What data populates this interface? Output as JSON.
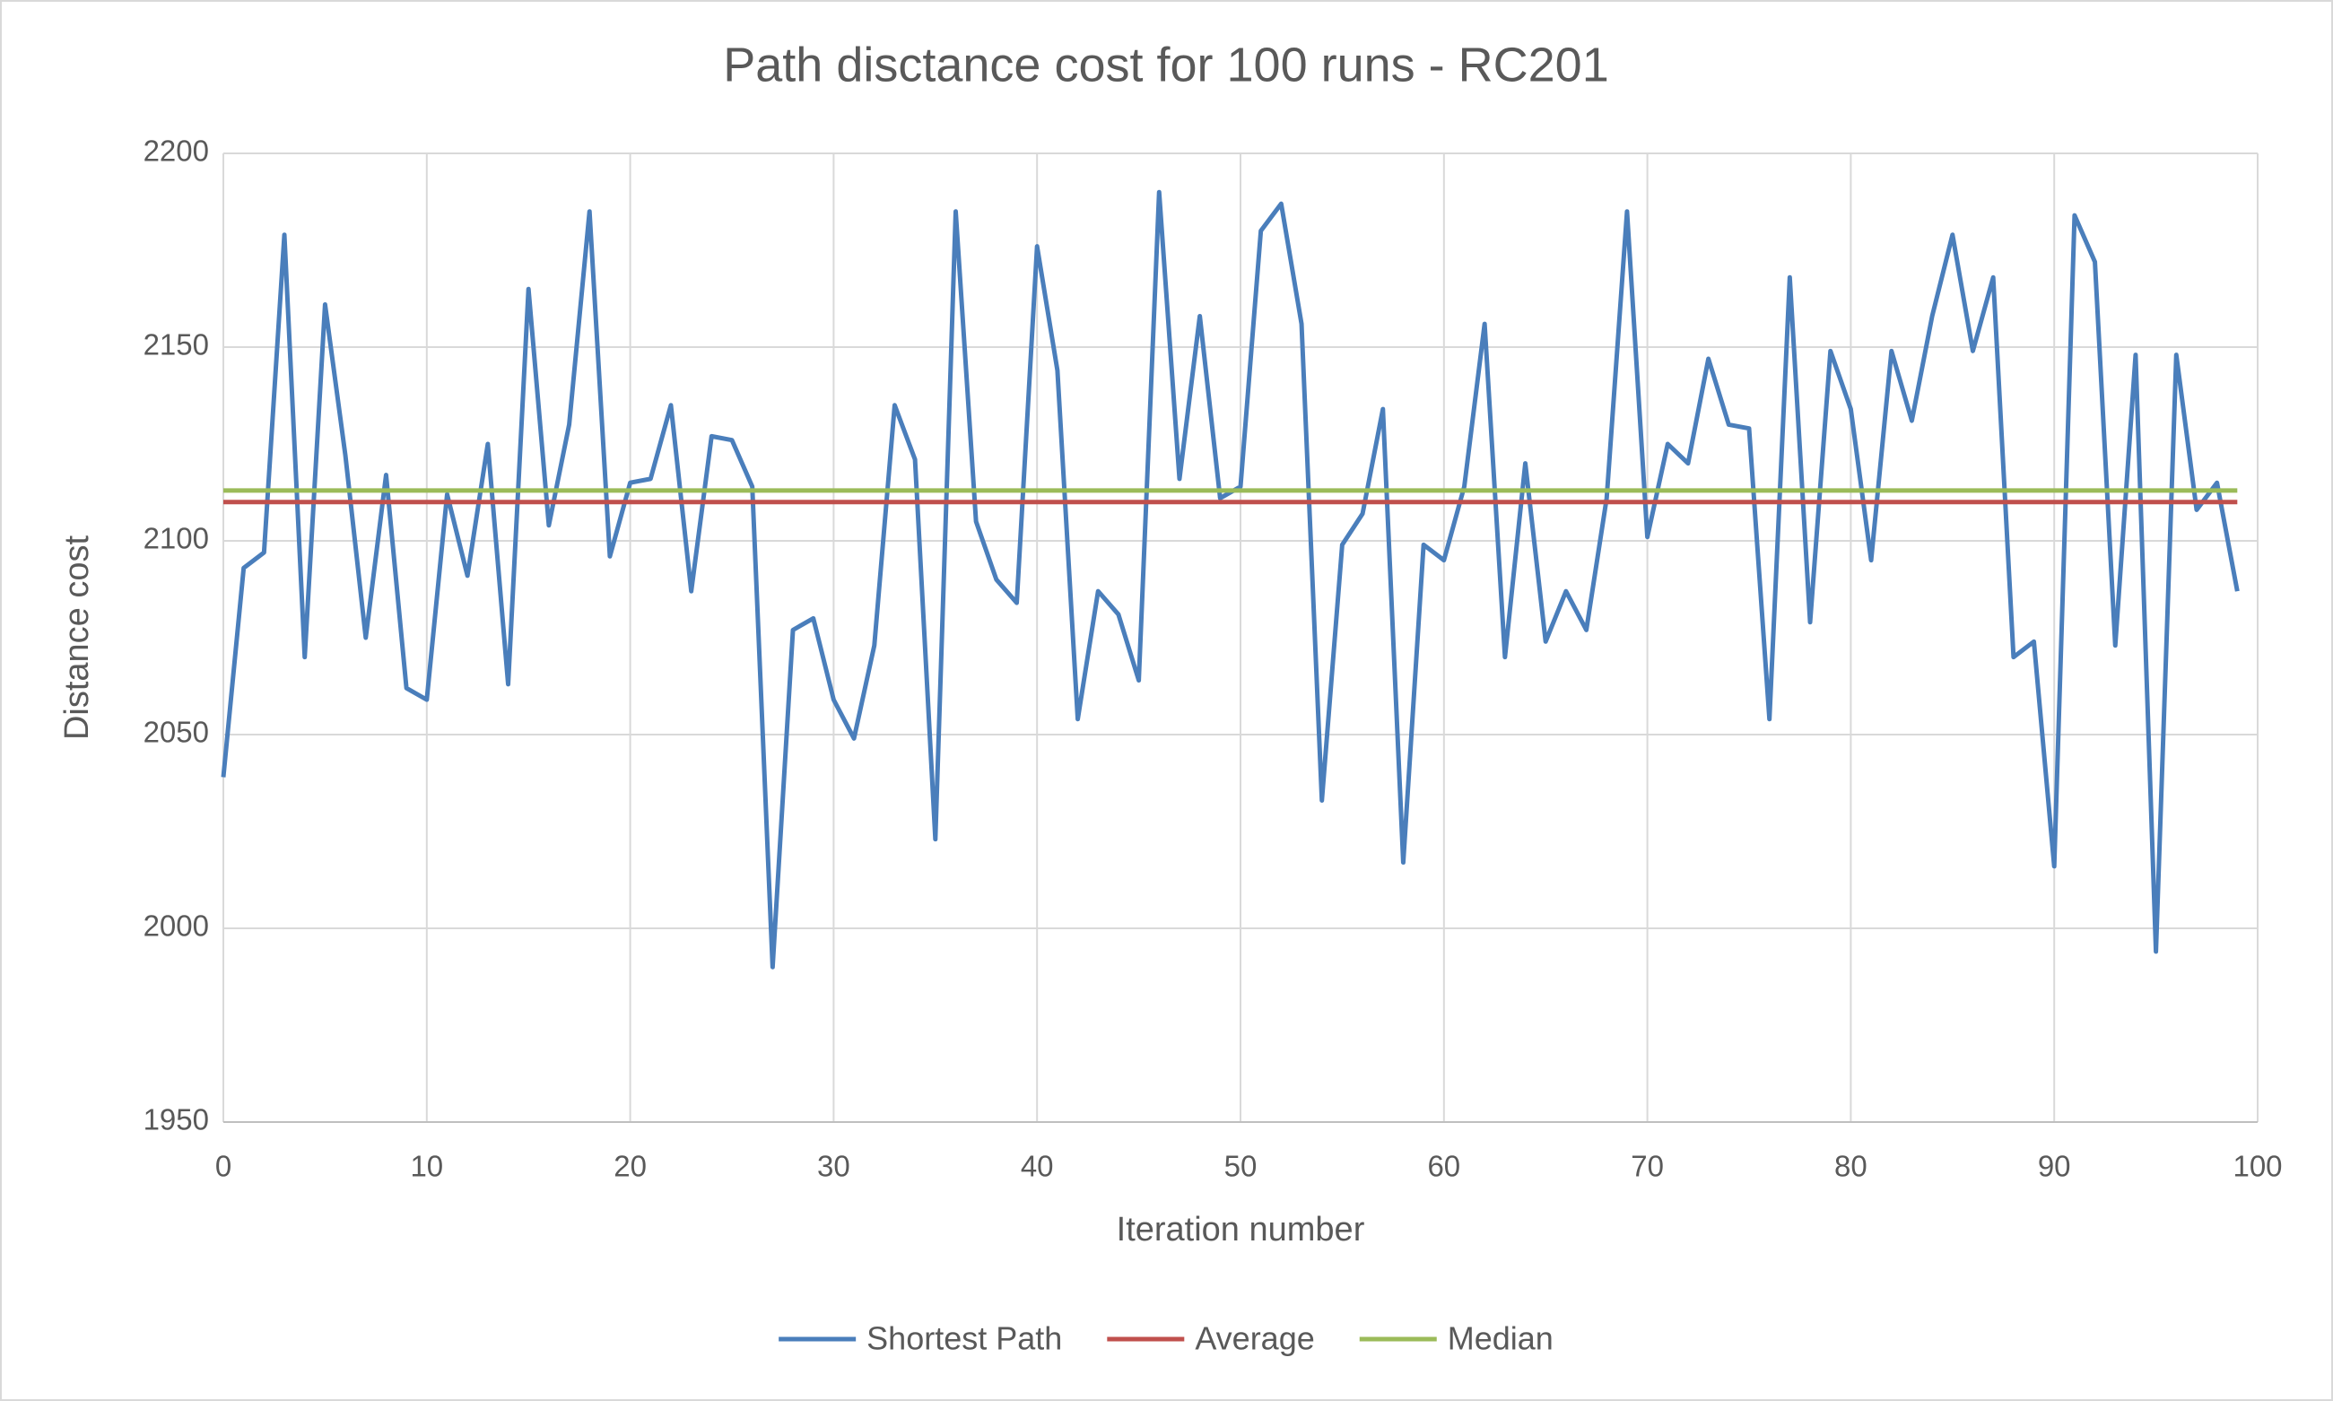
{
  "chart_data": {
    "type": "line",
    "title": "Path disctance cost for 100 runs - RC201",
    "x_label": "Iteration number",
    "y_label": "Distance cost",
    "xlim": [
      0,
      100
    ],
    "xticks": [
      0,
      10,
      20,
      30,
      40,
      50,
      60,
      70,
      80,
      90,
      100
    ],
    "ylim": [
      1950,
      2200
    ],
    "yticks": [
      1950,
      2000,
      2050,
      2100,
      2150,
      2200
    ],
    "grid": true,
    "legend": "bottom",
    "series": [
      {
        "name": "Shortest Path",
        "color": "#4a7ebb",
        "x": [
          0,
          1,
          2,
          3,
          4,
          5,
          6,
          7,
          8,
          9,
          10,
          11,
          12,
          13,
          14,
          15,
          16,
          17,
          18,
          19,
          20,
          21,
          22,
          23,
          24,
          25,
          26,
          27,
          28,
          29,
          30,
          31,
          32,
          33,
          34,
          35,
          36,
          37,
          38,
          39,
          40,
          41,
          42,
          43,
          44,
          45,
          46,
          47,
          48,
          49,
          50,
          51,
          52,
          53,
          54,
          55,
          56,
          57,
          58,
          59,
          60,
          61,
          62,
          63,
          64,
          65,
          66,
          67,
          68,
          69,
          70,
          71,
          72,
          73,
          74,
          75,
          76,
          77,
          78,
          79,
          80,
          81,
          82,
          83,
          84,
          85,
          86,
          87,
          88,
          89,
          90,
          91,
          92,
          93,
          94,
          95,
          96,
          97,
          98,
          99
        ],
        "values": [
          2039,
          2093,
          2097,
          2179,
          2070,
          2161,
          2122,
          2075,
          2117,
          2062,
          2059,
          2112,
          2091,
          2125,
          2063,
          2165,
          2104,
          2130,
          2185,
          2096,
          2115,
          2116,
          2135,
          2087,
          2127,
          2126,
          2114,
          1990,
          2077,
          2080,
          2059,
          2049,
          2073,
          2135,
          2121,
          2023,
          2185,
          2105,
          2090,
          2084,
          2176,
          2144,
          2054,
          2087,
          2081,
          2064,
          2190,
          2116,
          2158,
          2111,
          2114,
          2180,
          2187,
          2156,
          2033,
          2099,
          2107,
          2134,
          2017,
          2099,
          2095,
          2114,
          2156,
          2070,
          2120,
          2074,
          2087,
          2077,
          2111,
          2185,
          2101,
          2125,
          2120,
          2147,
          2130,
          2129,
          2054,
          2168,
          2079,
          2149,
          2134,
          2095,
          2149,
          2131,
          2158,
          2179,
          2149,
          2168,
          2070,
          2074,
          2016,
          2184,
          2172,
          2073,
          2148,
          1994,
          2148,
          2108,
          2115,
          2087
        ]
      },
      {
        "name": "Average",
        "color": "#c0504d",
        "x": [
          0,
          99
        ],
        "values": [
          2110,
          2110
        ]
      },
      {
        "name": "Median",
        "color": "#9bbb59",
        "x": [
          0,
          99
        ],
        "values": [
          2113,
          2113
        ]
      }
    ]
  }
}
